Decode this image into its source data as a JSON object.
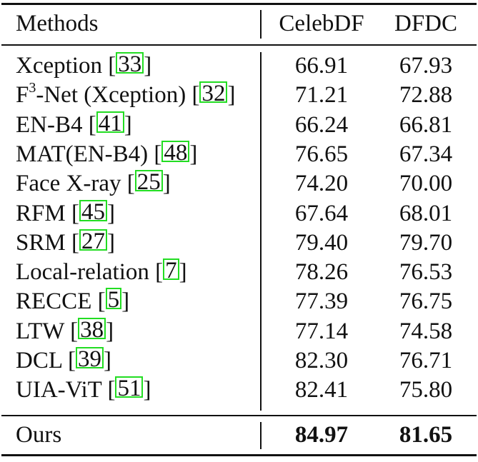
{
  "header": {
    "methods": "Methods",
    "col1": "CelebDF",
    "col2": "DFDC"
  },
  "rows": [
    {
      "pre": "Xception",
      "sup": "",
      "post": "",
      "cite": "33",
      "celebdf": "66.91",
      "dfdc": "67.93"
    },
    {
      "pre": "F",
      "sup": "3",
      "post": "-Net (Xception)",
      "cite": "32",
      "celebdf": "71.21",
      "dfdc": "72.88"
    },
    {
      "pre": "EN-B4",
      "sup": "",
      "post": "",
      "cite": "41",
      "celebdf": "66.24",
      "dfdc": "66.81"
    },
    {
      "pre": "MAT(EN-B4)",
      "sup": "",
      "post": "",
      "cite": "48",
      "celebdf": "76.65",
      "dfdc": "67.34"
    },
    {
      "pre": "Face X-ray",
      "sup": "",
      "post": "",
      "cite": "25",
      "celebdf": "74.20",
      "dfdc": "70.00"
    },
    {
      "pre": "RFM",
      "sup": "",
      "post": "",
      "cite": "45",
      "celebdf": "67.64",
      "dfdc": "68.01"
    },
    {
      "pre": "SRM",
      "sup": "",
      "post": "",
      "cite": "27",
      "celebdf": "79.40",
      "dfdc": "79.70"
    },
    {
      "pre": "Local-relation",
      "sup": "",
      "post": "",
      "cite": "7",
      "celebdf": "78.26",
      "dfdc": "76.53"
    },
    {
      "pre": "RECCE",
      "sup": "",
      "post": "",
      "cite": "5",
      "celebdf": "77.39",
      "dfdc": "76.75"
    },
    {
      "pre": "LTW",
      "sup": "",
      "post": "",
      "cite": "38",
      "celebdf": "77.14",
      "dfdc": "74.58"
    },
    {
      "pre": "DCL",
      "sup": "",
      "post": "",
      "cite": "39",
      "celebdf": "82.30",
      "dfdc": "76.71"
    },
    {
      "pre": "UIA-ViT",
      "sup": "",
      "post": "",
      "cite": "51",
      "celebdf": "82.41",
      "dfdc": "75.80"
    }
  ],
  "ours": {
    "method": "Ours",
    "celebdf": "84.97",
    "dfdc": "81.65"
  },
  "colors": {
    "text": "#111111",
    "citation_box": "#22dd22"
  }
}
